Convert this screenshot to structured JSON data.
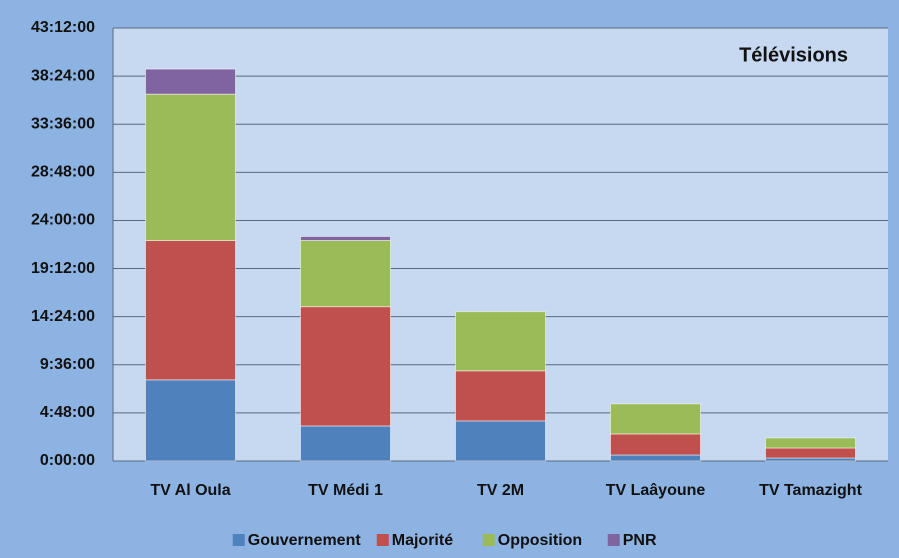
{
  "chart_data": {
    "type": "stacked_bar",
    "title": "Télévisions",
    "categories": [
      "TV Al Oula",
      "TV Médi 1",
      "TV 2M",
      "TV Laâyoune",
      "TV Tamazight"
    ],
    "series": [
      {
        "name": "Gouvernement",
        "color": "#4f81bd",
        "values": [
          8.1,
          3.5,
          4.0,
          0.6,
          0.3
        ]
      },
      {
        "name": "Majorité",
        "color": "#c0504d",
        "values": [
          13.9,
          11.9,
          5.0,
          2.1,
          1.0
        ]
      },
      {
        "name": "Opposition",
        "color": "#9bbb59",
        "values": [
          14.6,
          6.6,
          5.9,
          3.0,
          1.0
        ]
      },
      {
        "name": "PNR",
        "color": "#8064a2",
        "values": [
          2.5,
          0.4,
          0,
          0,
          0
        ]
      }
    ],
    "ylim": [
      0,
      43.2
    ],
    "yticks": [
      {
        "value": 0,
        "label": "0:00:00"
      },
      {
        "value": 4.8,
        "label": "4:48:00"
      },
      {
        "value": 9.6,
        "label": "9:36:00"
      },
      {
        "value": 14.4,
        "label": "14:24:00"
      },
      {
        "value": 19.2,
        "label": "19:12:00"
      },
      {
        "value": 24,
        "label": "24:00:00"
      },
      {
        "value": 28.8,
        "label": "28:48:00"
      },
      {
        "value": 33.6,
        "label": "33:36:00"
      },
      {
        "value": 38.4,
        "label": "38:24:00"
      },
      {
        "value": 43.2,
        "label": "43:12:00"
      }
    ],
    "grid": true,
    "legend": "bottom"
  }
}
